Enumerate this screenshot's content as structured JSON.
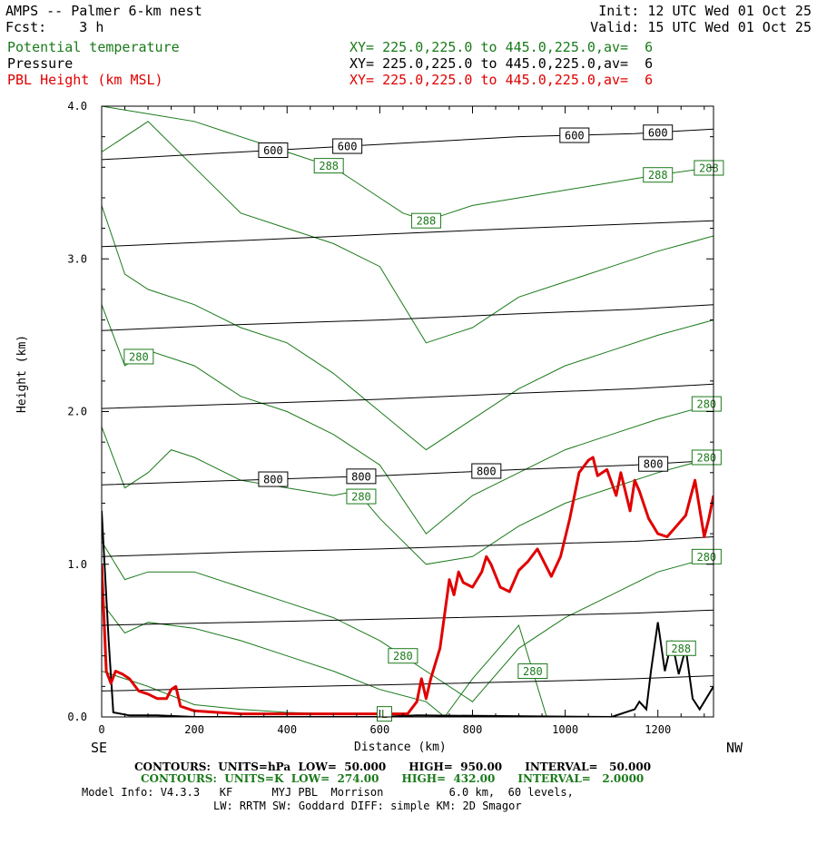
{
  "header": {
    "title": "AMPS -- Palmer 6-km nest",
    "fcst": "Fcst:    3 h",
    "init": "Init: 12 UTC Wed 01 Oct 25",
    "valid": "Valid: 15 UTC Wed 01 Oct 25",
    "field1_name": "Potential temperature",
    "field1_xy": "XY= 225.0,225.0 to 445.0,225.0,av=  6",
    "field2_name": "Pressure",
    "field2_xy": "XY= 225.0,225.0 to 445.0,225.0,av=  6",
    "field3_name": "PBL Height (km MSL)",
    "field3_xy": "XY= 225.0,225.0 to 445.0,225.0,av=  6"
  },
  "axes": {
    "x_left_end": "SE",
    "x_right_end": "NW",
    "x_label": "Distance (km)",
    "y_label": "Height (km)"
  },
  "footer": {
    "line1": "CONTOURS:  UNITS=hPa  LOW=  50.000      HIGH=  950.00      INTERVAL=   50.000",
    "line2": "CONTOURS:  UNITS=K  LOW=  274.00      HIGH=  432.00      INTERVAL=   2.0000",
    "line3": "Model Info: V4.3.3   KF      MYJ PBL  Morrison          6.0 km,  60 levels,",
    "line4": "LW: RRTM SW: Goddard DIFF: simple KM: 2D Smagor"
  },
  "colors": {
    "theta": "#1a7a1a",
    "pressure": "#000000",
    "pbl": "#e00000"
  },
  "chart_data": {
    "type": "line",
    "title": "AMPS -- Palmer 6-km nest",
    "xlabel": "Distance (km)",
    "ylabel": "Height (km)",
    "xlim": [
      0,
      1320
    ],
    "ylim": [
      0,
      4
    ],
    "x_ticks": [
      0,
      200,
      400,
      600,
      800,
      1000,
      1200
    ],
    "y_ticks": [
      0.0,
      1.0,
      2.0,
      3.0,
      4.0
    ],
    "y_tick_labels": [
      "0.0",
      "1.0",
      "2.0",
      "3.0",
      "4.0"
    ],
    "terrain": {
      "x": [
        0,
        15,
        25,
        60,
        120,
        200,
        400,
        600,
        680,
        1100,
        1150,
        1160,
        1175,
        1185,
        1200,
        1215,
        1230,
        1245,
        1260,
        1275,
        1290,
        1310,
        1320
      ],
      "y": [
        1.35,
        0.5,
        0.03,
        0.01,
        0.01,
        0.0,
        0.0,
        0.0,
        0.01,
        0.0,
        0.05,
        0.1,
        0.05,
        0.3,
        0.62,
        0.3,
        0.5,
        0.28,
        0.45,
        0.12,
        0.05,
        0.15,
        0.2
      ]
    },
    "series": [
      {
        "name": "PBL Height (km MSL)",
        "x": [
          0,
          10,
          20,
          30,
          45,
          60,
          80,
          100,
          120,
          140,
          150,
          160,
          170,
          180,
          200,
          250,
          300,
          400,
          500,
          600,
          660,
          680,
          690,
          700,
          710,
          730,
          750,
          760,
          770,
          780,
          800,
          820,
          830,
          840,
          860,
          880,
          900,
          920,
          940,
          960,
          970,
          990,
          1010,
          1030,
          1050,
          1060,
          1070,
          1090,
          1110,
          1120,
          1140,
          1150,
          1160,
          1180,
          1200,
          1220,
          1240,
          1260,
          1280,
          1300,
          1310,
          1320
        ],
        "y": [
          1.0,
          0.3,
          0.22,
          0.3,
          0.28,
          0.25,
          0.17,
          0.15,
          0.12,
          0.12,
          0.18,
          0.2,
          0.07,
          0.06,
          0.04,
          0.03,
          0.02,
          0.02,
          0.02,
          0.02,
          0.02,
          0.1,
          0.25,
          0.12,
          0.25,
          0.45,
          0.9,
          0.8,
          0.95,
          0.88,
          0.85,
          0.95,
          1.05,
          1.0,
          0.85,
          0.82,
          0.96,
          1.02,
          1.1,
          0.98,
          0.92,
          1.05,
          1.3,
          1.6,
          1.68,
          1.7,
          1.58,
          1.62,
          1.45,
          1.6,
          1.35,
          1.55,
          1.48,
          1.3,
          1.2,
          1.18,
          1.25,
          1.32,
          1.55,
          1.18,
          1.3,
          1.45
        ]
      },
      {
        "name": "Pressure",
        "levels": [
          {
            "value": 600,
            "label": "600",
            "x": [
              0,
              300,
              600,
              900,
              1150,
              1320
            ],
            "y": [
              3.65,
              3.7,
              3.75,
              3.8,
              3.82,
              3.85
            ],
            "label_x": [
              370,
              530,
              1020,
              1200
            ]
          },
          {
            "value": 650,
            "label": "",
            "x": [
              0,
              300,
              600,
              900,
              1150,
              1320
            ],
            "y": [
              3.08,
              3.12,
              3.16,
              3.2,
              3.23,
              3.25
            ],
            "label_x": []
          },
          {
            "value": 700,
            "label": "",
            "x": [
              0,
              300,
              600,
              900,
              1150,
              1320
            ],
            "y": [
              2.53,
              2.57,
              2.6,
              2.64,
              2.67,
              2.7
            ],
            "label_x": []
          },
          {
            "value": 750,
            "label": "",
            "x": [
              0,
              300,
              600,
              900,
              1150,
              1320
            ],
            "y": [
              2.02,
              2.05,
              2.08,
              2.12,
              2.15,
              2.18
            ],
            "label_x": []
          },
          {
            "value": 800,
            "label": "800",
            "x": [
              0,
              300,
              600,
              900,
              1150,
              1320
            ],
            "y": [
              1.52,
              1.55,
              1.58,
              1.62,
              1.65,
              1.68
            ],
            "label_x": [
              370,
              560,
              830,
              1190
            ]
          },
          {
            "value": 850,
            "label": "",
            "x": [
              0,
              300,
              600,
              900,
              1150,
              1320
            ],
            "y": [
              1.05,
              1.08,
              1.1,
              1.13,
              1.15,
              1.18
            ],
            "label_x": []
          },
          {
            "value": 900,
            "label": "",
            "x": [
              0,
              300,
              600,
              900,
              1150,
              1320
            ],
            "y": [
              0.6,
              0.62,
              0.64,
              0.66,
              0.68,
              0.7
            ],
            "label_x": []
          },
          {
            "value": 950,
            "label": "",
            "x": [
              0,
              300,
              600,
              900,
              1150,
              1320
            ],
            "y": [
              0.17,
              0.19,
              0.21,
              0.23,
              0.25,
              0.27
            ],
            "label_x": []
          }
        ]
      },
      {
        "name": "Potential temperature",
        "levels": [
          {
            "label": "288",
            "x": [
              0,
              200,
              400,
              500,
              600,
              650,
              700,
              750,
              800,
              900,
              1000,
              1100,
              1200,
              1320
            ],
            "y": [
              4.0,
              3.9,
              3.7,
              3.6,
              3.4,
              3.3,
              3.25,
              3.3,
              3.35,
              3.4,
              3.45,
              3.5,
              3.55,
              3.6
            ],
            "label_x": [
              490,
              700,
              1200,
              1310
            ]
          },
          {
            "label": "",
            "x": [
              0,
              100,
              200,
              300,
              400,
              500,
              600,
              700,
              800,
              900,
              1000,
              1100,
              1200,
              1320
            ],
            "y": [
              3.7,
              3.9,
              3.6,
              3.3,
              3.2,
              3.1,
              2.95,
              2.45,
              2.55,
              2.75,
              2.85,
              2.95,
              3.05,
              3.15
            ],
            "label_x": []
          },
          {
            "label": "",
            "x": [
              0,
              50,
              100,
              200,
              300,
              400,
              500,
              600,
              700,
              800,
              900,
              1000,
              1100,
              1200,
              1320
            ],
            "y": [
              3.35,
              2.9,
              2.8,
              2.7,
              2.55,
              2.45,
              2.25,
              2.0,
              1.75,
              1.95,
              2.15,
              2.3,
              2.4,
              2.5,
              2.6
            ],
            "label_x": []
          },
          {
            "label": "280",
            "x": [
              0,
              50,
              100,
              200,
              300,
              400,
              500,
              600,
              700,
              800,
              900,
              1000,
              1100,
              1200,
              1320
            ],
            "y": [
              2.7,
              2.3,
              2.4,
              2.3,
              2.1,
              2.0,
              1.85,
              1.65,
              1.2,
              1.45,
              1.6,
              1.75,
              1.85,
              1.95,
              2.05
            ],
            "label_x": [
              80,
              1340
            ]
          },
          {
            "label": "280",
            "x": [
              0,
              50,
              100,
              150,
              200,
              300,
              400,
              500,
              550,
              600,
              700,
              800,
              900,
              1000,
              1100,
              1200,
              1320
            ],
            "y": [
              1.9,
              1.5,
              1.6,
              1.75,
              1.7,
              1.55,
              1.5,
              1.45,
              1.48,
              1.3,
              1.0,
              1.05,
              1.25,
              1.4,
              1.5,
              1.6,
              1.7
            ],
            "label_x": [
              560,
              1340
            ]
          },
          {
            "label": "280",
            "x": [
              0,
              50,
              100,
              200,
              300,
              400,
              500,
              600,
              650,
              700,
              800,
              900,
              1000,
              1100,
              1200,
              1320
            ],
            "y": [
              1.15,
              0.9,
              0.95,
              0.95,
              0.85,
              0.75,
              0.65,
              0.5,
              0.4,
              0.3,
              0.1,
              0.45,
              0.65,
              0.8,
              0.95,
              1.05
            ],
            "label_x": [
              650,
              1340
            ]
          },
          {
            "label": "280",
            "x": [
              0,
              50,
              100,
              200,
              300,
              400,
              500,
              600,
              700,
              740,
              800,
              900,
              960
            ],
            "y": [
              0.75,
              0.55,
              0.62,
              0.58,
              0.5,
              0.4,
              0.3,
              0.18,
              0.1,
              0.0,
              0.25,
              0.6,
              0.0
            ],
            "label_x": [
              930
            ]
          },
          {
            "label": "L",
            "x": [
              0,
              100,
              200,
              300,
              400,
              500,
              600
            ],
            "y": [
              0.3,
              0.2,
              0.08,
              0.05,
              0.03,
              0.02,
              0.02
            ],
            "label_x": [
              610
            ]
          }
        ]
      }
    ],
    "annotations": [
      {
        "text": "288",
        "x": 1250,
        "y": 0.45
      }
    ],
    "grid": false,
    "legend": "header"
  }
}
